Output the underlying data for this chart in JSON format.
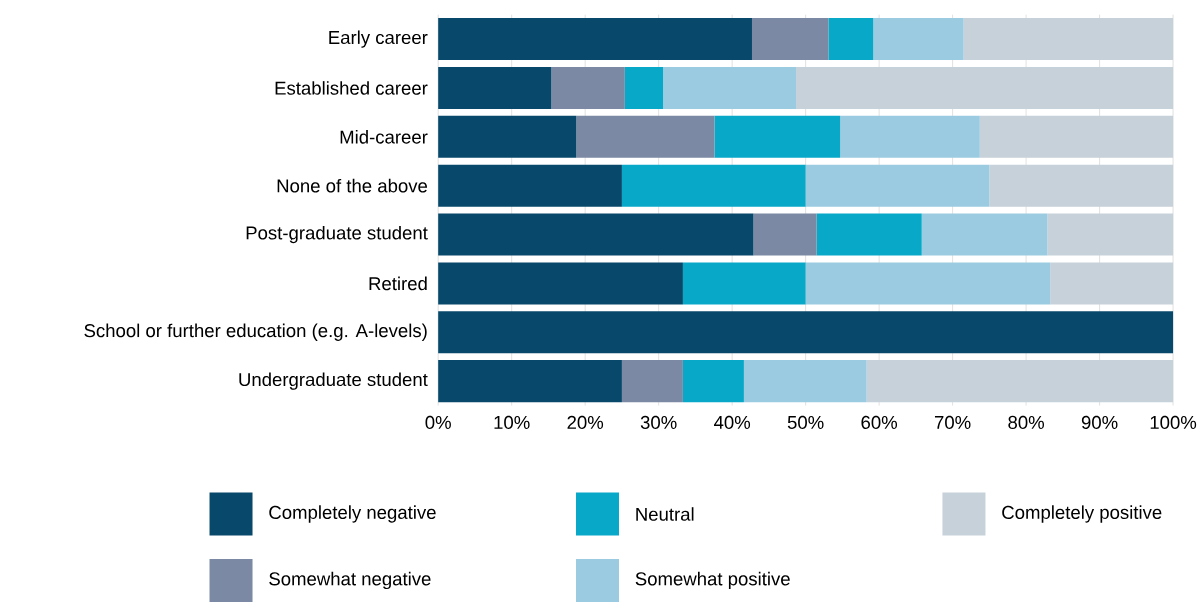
{
  "chart_data": {
    "type": "bar",
    "orientation": "horizontal",
    "stacked": true,
    "categories": [
      "Early career",
      "Established career",
      "Mid-career",
      "None of the above",
      "Post-graduate student",
      "Retired",
      "School or further education (e.g. A-levels)",
      "Undergraduate student"
    ],
    "series": [
      {
        "name": "Completely negative",
        "color": "#08496b",
        "values": [
          42.7,
          15.4,
          18.8,
          25,
          42.9,
          33.3,
          100,
          25
        ]
      },
      {
        "name": "Somewhat negative",
        "color": "#7b89a4",
        "values": [
          10.4,
          10,
          18.8,
          0,
          8.6,
          0,
          0,
          8.3
        ]
      },
      {
        "name": "Neutral",
        "color": "#08a8c9",
        "values": [
          6.1,
          5.2,
          17.1,
          25,
          14.3,
          16.7,
          0,
          8.3
        ]
      },
      {
        "name": "Somewhat positive",
        "color": "#9acbe0",
        "values": [
          12.3,
          18.1,
          19,
          25,
          17.1,
          33.3,
          0,
          16.7
        ]
      },
      {
        "name": "Completely positive",
        "color": "#c6d1d9",
        "values": [
          28.5,
          51.3,
          26.3,
          25,
          17.1,
          16.7,
          0,
          41.7
        ]
      }
    ],
    "xlim": [
      0,
      100
    ],
    "xticks": [
      {
        "value": 0,
        "label": "0%"
      },
      {
        "value": 10,
        "label": "10%"
      },
      {
        "value": 20,
        "label": "20%"
      },
      {
        "value": 30,
        "label": "30%"
      },
      {
        "value": 40,
        "label": "40%"
      },
      {
        "value": 50,
        "label": "50%"
      },
      {
        "value": 60,
        "label": "60%"
      },
      {
        "value": 70,
        "label": "70%"
      },
      {
        "value": 80,
        "label": "80%"
      },
      {
        "value": 90,
        "label": "90%"
      },
      {
        "value": 100,
        "label": "100%"
      }
    ],
    "grid": "x",
    "legend": "bottom"
  }
}
